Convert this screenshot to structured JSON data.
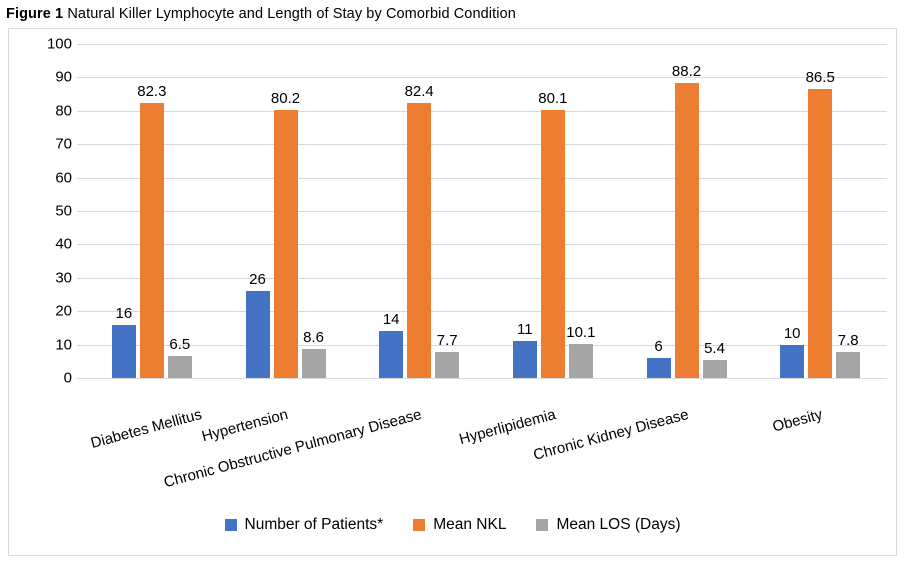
{
  "figure": {
    "label": "Figure 1",
    "title": "Natural Killer Lymphocyte and Length of Stay by Comorbid Condition"
  },
  "colors": {
    "patients_blue": "#4472C4",
    "nkl_orange": "#ED7D31",
    "los_gray": "#A5A5A5",
    "gridline": "#D9D9D9",
    "border": "#D9D9D9"
  },
  "chart_data": {
    "type": "bar",
    "title": "Natural Killer Lymphocyte and Length of Stay by Comorbid Condition",
    "categories": [
      "Diabetes Mellitus",
      "Hypertension",
      "Chronic Obstructive Pulmonary Disease",
      "Hyperlipidemia",
      "Chronic Kidney Disease",
      "Obesity"
    ],
    "series": [
      {
        "name": "Number of Patients*",
        "color": "#4472C4",
        "values": [
          16,
          26,
          14,
          11,
          6,
          10
        ]
      },
      {
        "name": "Mean NKL",
        "color": "#ED7D31",
        "values": [
          82.3,
          80.2,
          82.4,
          80.1,
          88.2,
          86.5
        ]
      },
      {
        "name": "Mean LOS (Days)",
        "color": "#A5A5A5",
        "values": [
          6.5,
          8.6,
          7.7,
          10.1,
          5.4,
          7.8
        ]
      }
    ],
    "xlabel": "",
    "ylabel": "",
    "ylim": [
      0,
      100
    ],
    "ytick_step": 10,
    "grid": true,
    "data_labels": true,
    "legend_position": "bottom"
  }
}
